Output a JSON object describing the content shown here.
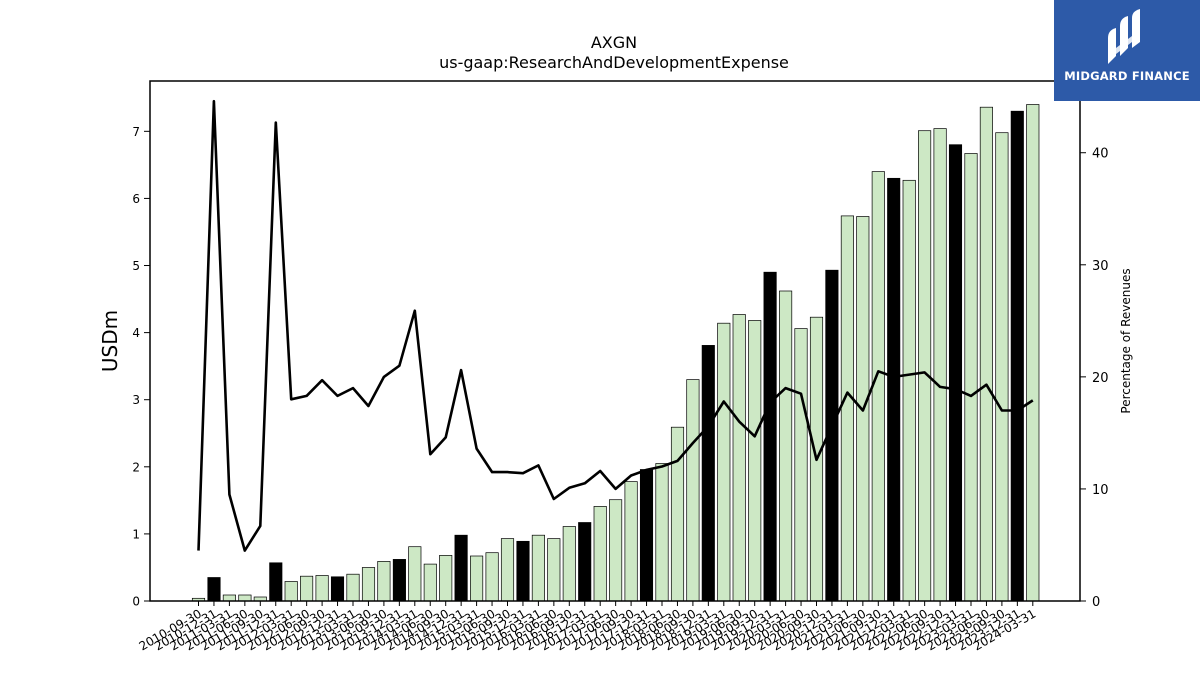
{
  "chart_data": {
    "type": "bar",
    "title": "AXGN",
    "subtitle": "us-gaap:ResearchAndDevelopmentExpense",
    "ylabel": "USDm",
    "y2label": "Percentage of Revenues",
    "ylim": [
      0,
      7.75
    ],
    "y2lim": [
      0,
      46.4
    ],
    "yticks": [
      0,
      1,
      2,
      3,
      4,
      5,
      6,
      7
    ],
    "y2ticks": [
      0,
      10,
      20,
      30,
      40
    ],
    "grid": false,
    "categories": [
      "2010-09-30",
      "2010-12-31",
      "2011-03-31",
      "2011-06-30",
      "2011-09-30",
      "2011-12-31",
      "2012-03-31",
      "2012-06-30",
      "2012-09-30",
      "2012-12-31",
      "2013-03-31",
      "2013-06-30",
      "2013-09-30",
      "2013-12-31",
      "2014-03-31",
      "2014-06-30",
      "2014-09-30",
      "2014-12-31",
      "2015-03-31",
      "2015-06-30",
      "2015-09-30",
      "2015-12-31",
      "2016-03-31",
      "2016-06-30",
      "2016-09-30",
      "2016-12-31",
      "2017-03-31",
      "2017-06-30",
      "2017-09-30",
      "2017-12-31",
      "2018-03-31",
      "2018-06-30",
      "2018-09-30",
      "2018-12-31",
      "2019-03-31",
      "2019-06-30",
      "2019-09-30",
      "2019-12-31",
      "2020-03-31",
      "2020-06-30",
      "2020-09-30",
      "2020-12-31",
      "2021-03-31",
      "2021-06-30",
      "2021-09-30",
      "2021-12-31",
      "2022-03-31",
      "2022-06-30",
      "2022-09-30",
      "2022-12-31",
      "2023-03-31",
      "2023-06-30",
      "2023-09-30",
      "2023-12-31",
      "2024-03-31"
    ],
    "xtick_labels": [
      "2010-09-30",
      "2010-12-31",
      "2011-03-31",
      "2011-06-30",
      "2011-09-30",
      "2011-12-31",
      "2012-03-31",
      "2012-06-30",
      "2012-09-30",
      "2012-12-31",
      "2013-03-31",
      "2013-06-30",
      "2013-09-30",
      "2013-12-31",
      "2014-03-31",
      "2014-06-30",
      "2014-09-30",
      "2014-12-31",
      "2015-03-31",
      "2015-06-30",
      "2015-09-30",
      "2015-12-31",
      "2016-03-31",
      "2016-06-30",
      "2016-09-30",
      "2016-12-31",
      "2017-03-31",
      "2017-06-30",
      "2017-09-30",
      "2017-12-31",
      "2018-03-31",
      "2018-06-30",
      "2018-09-30",
      "2018-12-31",
      "2019-03-31",
      "2019-06-30",
      "2019-09-30",
      "2019-12-31",
      "2020-03-31",
      "2020-06-30",
      "2020-09-30",
      "2020-12-31",
      "2021-03-31",
      "2021-06-30",
      "2021-09-30",
      "2021-12-31",
      "2022-03-31",
      "2022-06-30",
      "2022-09-30",
      "2022-12-31",
      "2023-03-31",
      "2023-06-30",
      "2023-09-30",
      "2023-12-31",
      "2024-03-31"
    ],
    "series": [
      {
        "axis": "left",
        "values": [
          0.04,
          0.35,
          0.09,
          0.09,
          0.06,
          0.57,
          0.29,
          0.37,
          0.38,
          0.36,
          0.4,
          0.5,
          0.59,
          0.62,
          0.81,
          0.55,
          0.68,
          0.98,
          0.67,
          0.72,
          0.93,
          0.89,
          0.98,
          0.93,
          1.11,
          1.17,
          1.41,
          1.51,
          1.78,
          1.96,
          2.05,
          2.59,
          3.3,
          3.81,
          4.14,
          4.27,
          4.18,
          4.9,
          4.62,
          4.06,
          4.23,
          4.93,
          5.74,
          5.73,
          6.4,
          6.3,
          6.27,
          7.01,
          7.04,
          6.8,
          6.67,
          7.36,
          6.98,
          7.3,
          7.4
        ],
        "kind": "bar",
        "fill": "#cde8c5",
        "annual_fill": "#000000"
      },
      {
        "axis": "right",
        "values": [
          4.5,
          44.6,
          9.5,
          4.5,
          6.7,
          42.7,
          18.0,
          18.3,
          19.7,
          18.3,
          19.0,
          17.4,
          20.0,
          21.0,
          25.9,
          13.1,
          14.6,
          20.6,
          13.6,
          11.5,
          11.5,
          11.4,
          12.1,
          9.1,
          10.1,
          10.5,
          11.6,
          10.0,
          11.2,
          11.7,
          12.0,
          12.5,
          14.1,
          15.6,
          17.8,
          16.0,
          14.7,
          17.7,
          19.0,
          18.5,
          12.6,
          15.6,
          18.6,
          17.0,
          20.5,
          20.0,
          20.2,
          20.4,
          19.1,
          18.9,
          18.3,
          19.3,
          17.0,
          17.0,
          17.9
        ],
        "kind": "line",
        "color": "#000000"
      }
    ],
    "annual_indices": [
      1,
      5,
      9,
      13,
      17,
      21,
      25,
      29,
      33,
      37,
      41,
      45,
      49,
      53
    ]
  },
  "logo": {
    "text": "MIDGARD FINANCE",
    "icon": "midgard-logo-icon",
    "background": "#2d5aa8"
  }
}
